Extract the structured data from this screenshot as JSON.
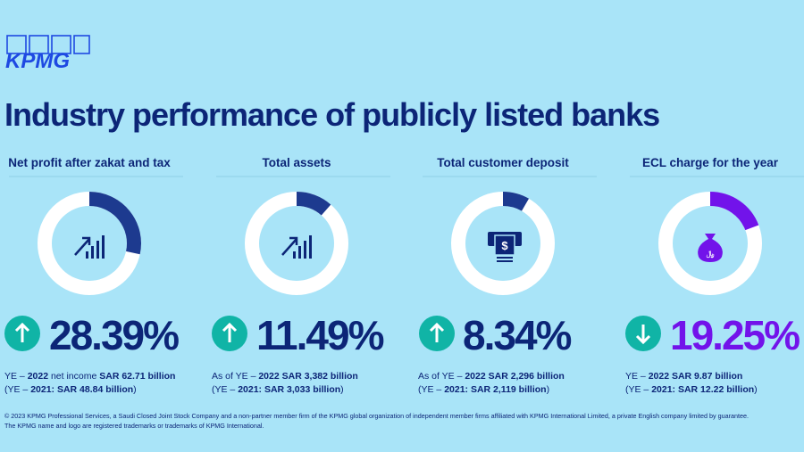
{
  "logo": "KPMG",
  "title": "Industry performance of publicly listed banks",
  "arc_color": "#1d3a8f",
  "track_color": "#ffffff",
  "metrics": [
    {
      "heading": "Net profit after zakat and tax",
      "value": 28.39,
      "value_label": "28.39%",
      "color": "#0c2577",
      "notes": [
        [
          {
            "text": "YE – ",
            "bold": false
          },
          {
            "text": "2022",
            "bold": true
          },
          {
            "text": " net income ",
            "bold": false
          },
          {
            "text": "SAR 62.71 billion",
            "bold": true
          }
        ],
        [
          {
            "text": "(YE – ",
            "bold": false
          },
          {
            "text": "2021: SAR 48.84 billion",
            "bold": true
          },
          {
            "text": ")",
            "bold": false
          }
        ]
      ]
    },
    {
      "heading": "Total assets",
      "value": 11.49,
      "value_label": "11.49%",
      "color": "#0c2577",
      "notes": [
        [
          {
            "text": "As of YE – ",
            "bold": false
          },
          {
            "text": "2022 SAR 3,382 billion",
            "bold": true
          }
        ],
        [
          {
            "text": "(YE – ",
            "bold": false
          },
          {
            "text": "2021: SAR 3,033 billion",
            "bold": true
          },
          {
            "text": ")",
            "bold": false
          }
        ]
      ]
    },
    {
      "heading": "Total customer deposit",
      "value": 8.34,
      "value_label": "8.34%",
      "color": "#0c2577",
      "notes": [
        [
          {
            "text": "As of YE – ",
            "bold": false
          },
          {
            "text": "2022 SAR 2,296 billion",
            "bold": true
          }
        ],
        [
          {
            "text": "(YE – ",
            "bold": false
          },
          {
            "text": "2021: SAR 2,119 billion",
            "bold": true
          },
          {
            "text": ")",
            "bold": false
          }
        ]
      ]
    },
    {
      "heading": "ECL charge for the year",
      "value": 19.25,
      "value_label": "19.25%",
      "color": "#7213ea",
      "notes": [
        [
          {
            "text": "YE – ",
            "bold": false
          },
          {
            "text": "2022 SAR 9.87 billion",
            "bold": true
          }
        ],
        [
          {
            "text": "(YE – ",
            "bold": false
          },
          {
            "text": "2021: SAR 12.22 billion",
            "bold": true
          },
          {
            "text": ")",
            "bold": false
          }
        ]
      ]
    }
  ],
  "footer": [
    "© 2023 KPMG Professional Services, a Saudi Closed Joint Stock Company and a non-partner member firm of the KPMG global organization of independent member firms affiliated with KPMG International Limited, a private English company limited by guarantee.",
    "The KPMG name and logo are registered trademarks or trademarks of KPMG International."
  ]
}
